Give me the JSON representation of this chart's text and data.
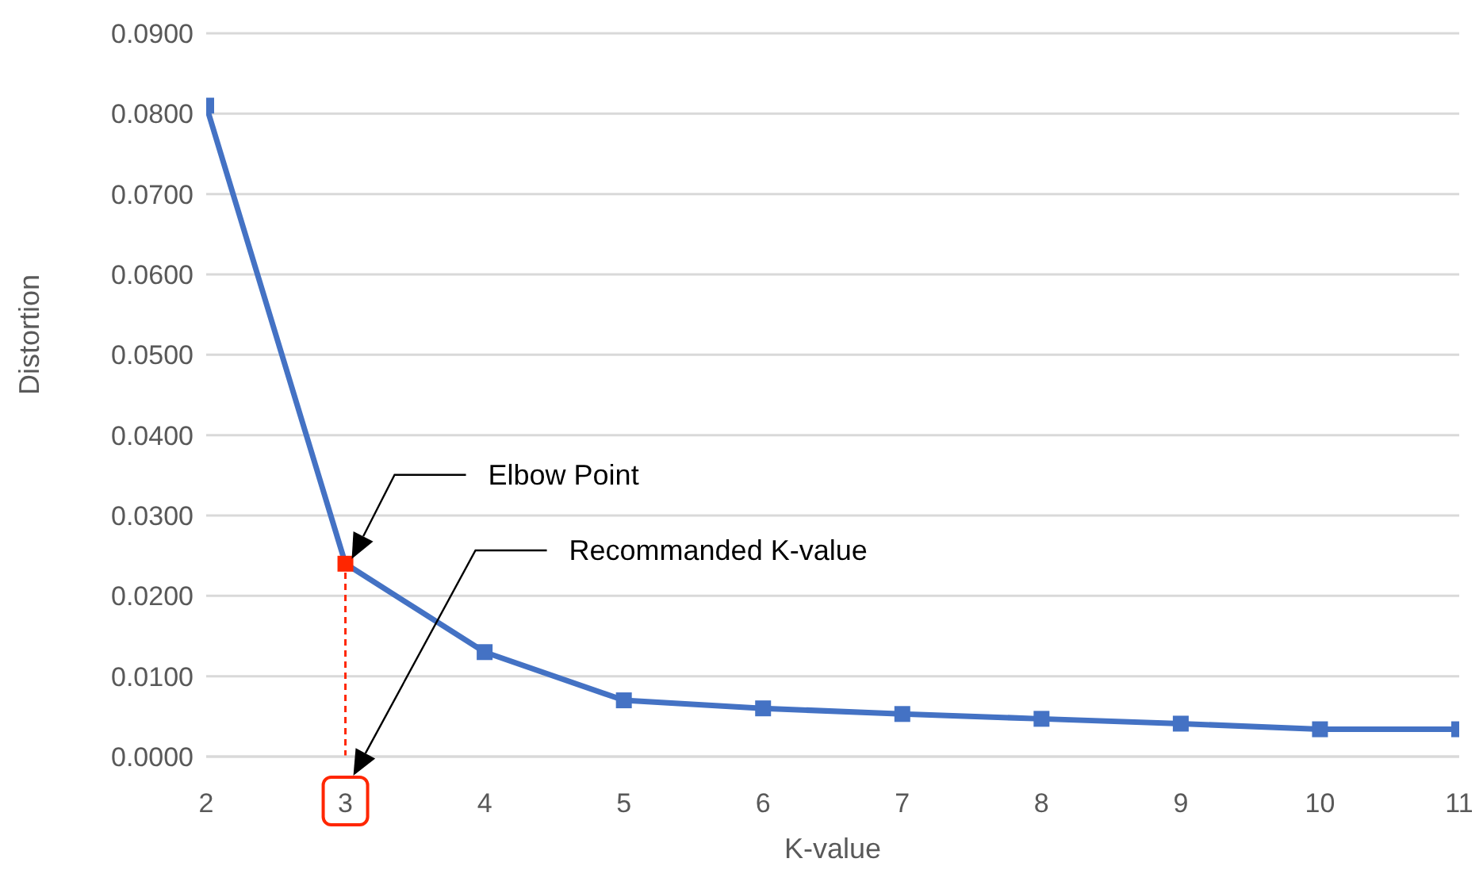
{
  "chart_data": {
    "type": "line",
    "xlabel": "K-value",
    "ylabel": "Distortion",
    "x": [
      2,
      3,
      4,
      5,
      6,
      7,
      8,
      9,
      10,
      11
    ],
    "series": [
      {
        "color": "#4472c4",
        "colors": [
          "#4472c4",
          "#ff2600",
          "#4472c4",
          "#4472c4",
          "#4472c4",
          "#4472c4",
          "#4472c4",
          "#4472c4",
          "#4472c4",
          "#4472c4"
        ],
        "values": [
          0.081,
          0.024,
          0.013,
          0.007,
          0.006,
          0.0053,
          0.0047,
          0.0041,
          0.0034,
          0.0034
        ]
      }
    ],
    "xlim": [
      2,
      11
    ],
    "xticks": [
      2,
      3,
      4,
      5,
      6,
      7,
      8,
      9,
      10,
      11
    ],
    "ylim": [
      0,
      0.09
    ],
    "yticks": [
      {
        "value": 0,
        "label": "0.0000"
      },
      {
        "value": 0.01,
        "label": "0.0100"
      },
      {
        "value": 0.02,
        "label": "0.0200"
      },
      {
        "value": 0.03,
        "label": "0.0300"
      },
      {
        "value": 0.04,
        "label": "0.0400"
      },
      {
        "value": 0.05,
        "label": "0.0500"
      },
      {
        "value": 0.06,
        "label": "0.0600"
      },
      {
        "value": 0.07,
        "label": "0.0700"
      },
      {
        "value": 0.08,
        "label": "0.0800"
      },
      {
        "value": 0.09,
        "label": "0.0900"
      }
    ],
    "grid": "y",
    "marker": "square",
    "line_style": "solid",
    "ref_lines": [
      {
        "axis": "x",
        "value": 3,
        "color": "#ff2600",
        "line_style": "dashed"
      }
    ],
    "annotations": [
      "Elbow Point",
      "Recommanded K-value"
    ]
  }
}
